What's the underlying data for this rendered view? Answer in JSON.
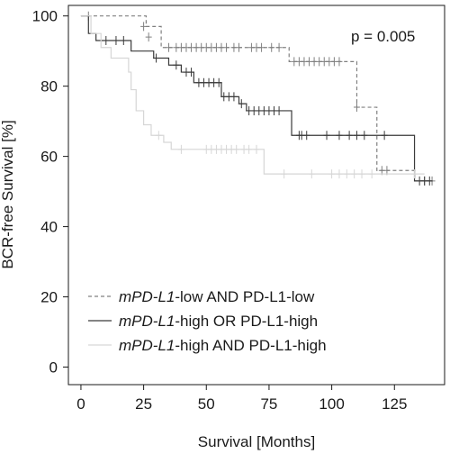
{
  "chart_data": {
    "type": "line",
    "subtype": "kaplan-meier",
    "xlabel": "Survival [Months]",
    "ylabel": "BCR-free Survival [%]",
    "xlim": [
      -5,
      145
    ],
    "ylim": [
      -5,
      103
    ],
    "xticks": [
      0,
      25,
      50,
      75,
      100,
      125
    ],
    "yticks": [
      0,
      20,
      40,
      60,
      80,
      100
    ],
    "annotation": "p = 0.005",
    "legend_position": "bottom-left",
    "grid": false,
    "series": [
      {
        "legend_italic": "mPD-L1",
        "legend_rest": "-low AND PD-L1-low",
        "color": "#808080",
        "dash": true,
        "steps": [
          [
            0,
            100
          ],
          [
            26,
            97
          ],
          [
            32,
            91
          ],
          [
            83,
            87
          ],
          [
            110,
            74
          ],
          [
            118,
            56
          ],
          [
            124,
            56
          ],
          [
            133,
            53
          ],
          [
            140,
            53
          ]
        ],
        "censors": [
          [
            3,
            100
          ],
          [
            25,
            97
          ],
          [
            27,
            94
          ],
          [
            35,
            91
          ],
          [
            38,
            91
          ],
          [
            40,
            91
          ],
          [
            42,
            91
          ],
          [
            44,
            91
          ],
          [
            46,
            91
          ],
          [
            48,
            91
          ],
          [
            50,
            91
          ],
          [
            52,
            91
          ],
          [
            54,
            91
          ],
          [
            56,
            91
          ],
          [
            58,
            91
          ],
          [
            61,
            91
          ],
          [
            63,
            91
          ],
          [
            68,
            91
          ],
          [
            70,
            91
          ],
          [
            72,
            91
          ],
          [
            76,
            91
          ],
          [
            79,
            91
          ],
          [
            85,
            87
          ],
          [
            87,
            87
          ],
          [
            89,
            87
          ],
          [
            91,
            87
          ],
          [
            93,
            87
          ],
          [
            95,
            87
          ],
          [
            97,
            87
          ],
          [
            99,
            87
          ],
          [
            101,
            87
          ],
          [
            103,
            87
          ],
          [
            110,
            74
          ],
          [
            120,
            56
          ],
          [
            122,
            56
          ],
          [
            137,
            53
          ],
          [
            140,
            53
          ]
        ]
      },
      {
        "legend_italic": "mPD-L1",
        "legend_rest": "-high OR PD-L1-high",
        "color": "#3a3a3a",
        "dash": false,
        "steps": [
          [
            0,
            100
          ],
          [
            3,
            95
          ],
          [
            6,
            93
          ],
          [
            20,
            90
          ],
          [
            29,
            88
          ],
          [
            35,
            86
          ],
          [
            40,
            84
          ],
          [
            45,
            81
          ],
          [
            56,
            77
          ],
          [
            63,
            75
          ],
          [
            66,
            73
          ],
          [
            84,
            66
          ],
          [
            133,
            53
          ],
          [
            140,
            53
          ]
        ],
        "censors": [
          [
            10,
            93
          ],
          [
            14,
            93
          ],
          [
            17,
            93
          ],
          [
            30,
            88
          ],
          [
            38,
            86
          ],
          [
            42,
            84
          ],
          [
            44,
            84
          ],
          [
            47,
            81
          ],
          [
            49,
            81
          ],
          [
            51,
            81
          ],
          [
            53,
            81
          ],
          [
            55,
            81
          ],
          [
            57,
            77
          ],
          [
            59,
            77
          ],
          [
            61,
            77
          ],
          [
            64,
            75
          ],
          [
            67,
            73
          ],
          [
            69,
            73
          ],
          [
            71,
            73
          ],
          [
            73,
            73
          ],
          [
            75,
            73
          ],
          [
            77,
            73
          ],
          [
            79,
            73
          ],
          [
            87,
            66
          ],
          [
            88,
            66
          ],
          [
            90,
            66
          ],
          [
            98,
            66
          ],
          [
            103,
            66
          ],
          [
            107,
            66
          ],
          [
            110,
            66
          ],
          [
            113,
            66
          ],
          [
            121,
            66
          ],
          [
            135,
            53
          ],
          [
            137,
            53
          ],
          [
            139,
            53
          ]
        ]
      },
      {
        "legend_italic": "mPD-L1",
        "legend_rest": "-high AND PD-L1-high",
        "color": "#d6d6d6",
        "dash": false,
        "steps": [
          [
            0,
            100
          ],
          [
            4,
            95
          ],
          [
            8,
            91
          ],
          [
            12,
            88
          ],
          [
            19,
            84
          ],
          [
            20,
            79
          ],
          [
            22,
            73
          ],
          [
            25,
            69
          ],
          [
            28,
            66
          ],
          [
            33,
            64
          ],
          [
            36,
            62
          ],
          [
            73,
            55
          ],
          [
            137,
            55
          ]
        ],
        "censors": [
          [
            31,
            66
          ],
          [
            40,
            62
          ],
          [
            50,
            62
          ],
          [
            52,
            62
          ],
          [
            54,
            62
          ],
          [
            56,
            62
          ],
          [
            58,
            62
          ],
          [
            60,
            62
          ],
          [
            62,
            62
          ],
          [
            65,
            62
          ],
          [
            67,
            62
          ],
          [
            70,
            62
          ],
          [
            81,
            55
          ],
          [
            92,
            55
          ],
          [
            100,
            55
          ],
          [
            103,
            55
          ],
          [
            106,
            55
          ],
          [
            109,
            55
          ],
          [
            112,
            55
          ],
          [
            116,
            55
          ],
          [
            133,
            55
          ]
        ]
      }
    ]
  }
}
